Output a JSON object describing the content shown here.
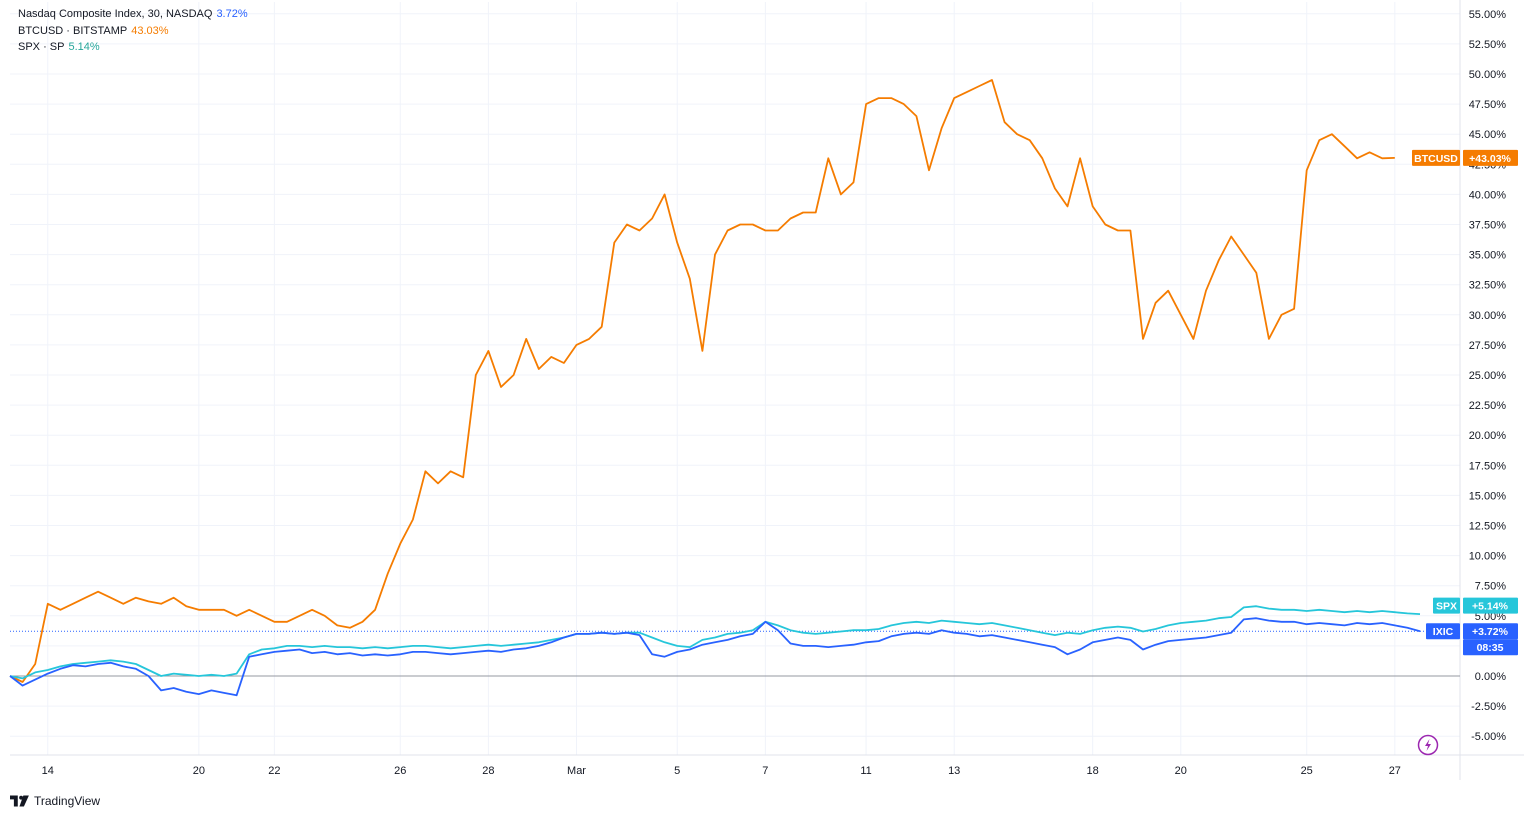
{
  "legend": [
    {
      "label": "Nasdaq Composite Index, 30, NASDAQ",
      "value": "3.72%",
      "color": "#2962ff"
    },
    {
      "label": "BTCUSD · BITSTAMP",
      "value": "43.03%",
      "color": "#f57c00"
    },
    {
      "label": "SPX · SP",
      "value": "5.14%",
      "color": "#26c6da"
    }
  ],
  "price_tags": {
    "btc": {
      "name": "BTCUSD",
      "value": "+43.03%"
    },
    "spx": {
      "name": "SPX",
      "value": "+5.14%"
    },
    "ixic": {
      "name": "IXIC",
      "value": "+3.72%",
      "countdown": "08:35"
    }
  },
  "footer": {
    "brand": "TradingView"
  },
  "icons": {
    "logo": "tradingview-logo-icon",
    "alert": "lightning-icon"
  },
  "chart_data": {
    "type": "line",
    "y_unit": "%",
    "ylim": [
      -6.5,
      55.5
    ],
    "y_ticks": [
      "55.00%",
      "52.50%",
      "50.00%",
      "47.50%",
      "45.00%",
      "42.50%",
      "40.00%",
      "37.50%",
      "35.00%",
      "32.50%",
      "30.00%",
      "27.50%",
      "25.00%",
      "22.50%",
      "20.00%",
      "17.50%",
      "15.00%",
      "12.50%",
      "10.00%",
      "7.50%",
      "5.00%",
      "2.50%",
      "0.00%",
      "-2.50%",
      "-5.00%"
    ],
    "x_ticks": [
      "14",
      "20",
      "22",
      "26",
      "28",
      "Mar",
      "5",
      "7",
      "11",
      "13",
      "18",
      "20",
      "25",
      "27"
    ],
    "x_tick_index": [
      3,
      15,
      21,
      31,
      38,
      45,
      53,
      60,
      68,
      75,
      86,
      93,
      103,
      110
    ],
    "xlim": [
      0,
      112
    ],
    "grid": true,
    "legend_position": "top-left",
    "series": [
      {
        "name": "BTCUSD",
        "color": "#f57c00",
        "values": [
          0,
          -0.5,
          1,
          6,
          5.5,
          6,
          6.5,
          7,
          6.5,
          6,
          6.5,
          6.2,
          6,
          6.5,
          5.8,
          5.5,
          5.5,
          5.5,
          5.0,
          5.5,
          5.0,
          4.5,
          4.5,
          5.0,
          5.5,
          5.0,
          4.2,
          4.0,
          4.5,
          5.5,
          8.5,
          11.0,
          13.0,
          17.0,
          16.0,
          17.0,
          16.5,
          25.0,
          27.0,
          24.0,
          25.0,
          28.0,
          25.5,
          26.5,
          26.0,
          27.5,
          28.0,
          29.0,
          36.0,
          37.5,
          37.0,
          38.0,
          40.0,
          36.0,
          33.0,
          27.0,
          35.0,
          37.0,
          37.5,
          37.5,
          37.0,
          37.0,
          38.0,
          38.5,
          38.5,
          43.0,
          40.0,
          41.0,
          47.5,
          48.0,
          48.0,
          47.5,
          46.5,
          42.0,
          45.5,
          48.0,
          48.5,
          49.0,
          49.5,
          46.0,
          45.0,
          44.5,
          43.0,
          40.5,
          39.0,
          43.0,
          39.0,
          37.5,
          37.0,
          37.0,
          28.0,
          31.0,
          32.0,
          30.0,
          28.0,
          32.0,
          34.5,
          36.5,
          35.0,
          33.5,
          28.0,
          30.0,
          30.5,
          42.0,
          44.5,
          45.0,
          44.0,
          43.0,
          43.5,
          43.0,
          43.03
        ]
      },
      {
        "name": "SPX",
        "color": "#26c6da",
        "values": [
          0,
          -0.2,
          0.3,
          0.5,
          0.8,
          1.0,
          1.1,
          1.2,
          1.3,
          1.2,
          1.0,
          0.5,
          0.0,
          0.2,
          0.1,
          0.0,
          0.1,
          0.0,
          0.2,
          1.8,
          2.2,
          2.3,
          2.5,
          2.5,
          2.4,
          2.5,
          2.4,
          2.4,
          2.3,
          2.4,
          2.3,
          2.4,
          2.5,
          2.5,
          2.4,
          2.3,
          2.4,
          2.5,
          2.6,
          2.5,
          2.6,
          2.7,
          2.8,
          3.0,
          3.2,
          3.5,
          3.5,
          3.6,
          3.5,
          3.6,
          3.6,
          3.2,
          2.8,
          2.5,
          2.4,
          3.0,
          3.2,
          3.5,
          3.6,
          3.8,
          4.5,
          4.2,
          3.8,
          3.6,
          3.5,
          3.6,
          3.7,
          3.8,
          3.8,
          3.9,
          4.2,
          4.4,
          4.5,
          4.4,
          4.6,
          4.5,
          4.4,
          4.3,
          4.4,
          4.2,
          4.0,
          3.8,
          3.6,
          3.4,
          3.6,
          3.5,
          3.8,
          4.0,
          4.1,
          4.0,
          3.7,
          3.9,
          4.2,
          4.4,
          4.5,
          4.6,
          4.8,
          4.9,
          5.7,
          5.8,
          5.6,
          5.5,
          5.5,
          5.4,
          5.5,
          5.4,
          5.3,
          5.4,
          5.3,
          5.4,
          5.3,
          5.2,
          5.14
        ]
      },
      {
        "name": "IXIC",
        "color": "#2962ff",
        "values": [
          0,
          -0.8,
          -0.3,
          0.2,
          0.6,
          0.9,
          0.8,
          1.0,
          1.1,
          0.8,
          0.6,
          0.0,
          -1.2,
          -1.0,
          -1.3,
          -1.5,
          -1.2,
          -1.4,
          -1.6,
          1.6,
          1.8,
          2.0,
          2.1,
          2.2,
          1.9,
          2.0,
          1.8,
          1.9,
          1.7,
          1.8,
          1.7,
          1.8,
          2.0,
          2.0,
          1.9,
          1.8,
          1.9,
          2.0,
          2.1,
          2.0,
          2.2,
          2.3,
          2.5,
          2.8,
          3.2,
          3.5,
          3.5,
          3.6,
          3.5,
          3.6,
          3.4,
          1.8,
          1.6,
          2.0,
          2.2,
          2.6,
          2.8,
          3.0,
          3.3,
          3.5,
          4.5,
          3.8,
          2.7,
          2.5,
          2.5,
          2.4,
          2.5,
          2.6,
          2.8,
          2.9,
          3.3,
          3.5,
          3.6,
          3.5,
          3.8,
          3.6,
          3.5,
          3.3,
          3.4,
          3.2,
          3.0,
          2.8,
          2.6,
          2.4,
          1.8,
          2.2,
          2.8,
          3.0,
          3.2,
          3.0,
          2.2,
          2.6,
          2.9,
          3.0,
          3.1,
          3.2,
          3.4,
          3.6,
          4.7,
          4.8,
          4.6,
          4.5,
          4.5,
          4.3,
          4.4,
          4.3,
          4.2,
          4.4,
          4.3,
          4.4,
          4.2,
          4.0,
          3.72
        ]
      }
    ]
  }
}
